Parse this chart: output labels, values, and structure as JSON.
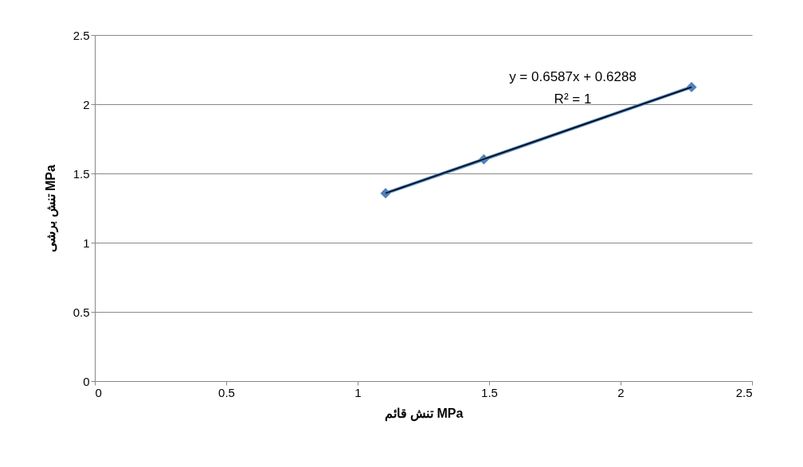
{
  "chart_data": {
    "type": "line",
    "xlabel": "تنش قائم MPa",
    "ylabel": "تنش برشی MPa",
    "xlim": [
      0,
      2.5
    ],
    "xticks": [
      0,
      0.5,
      1,
      1.5,
      2,
      2.5
    ],
    "ylim": [
      0,
      2.5
    ],
    "yticks": [
      0,
      0.5,
      1,
      1.5,
      2,
      2.5
    ],
    "grid": "y",
    "marker": "diamond",
    "line_style": "solid",
    "series": [
      {
        "color": "#4f81bd",
        "x": [
          1.106,
          1.48,
          2.27
        ],
        "values": [
          1.357,
          1.602,
          2.124
        ]
      },
      {
        "type": "line",
        "color": "#000000",
        "marker": "none",
        "x": [
          1.106,
          2.27
        ],
        "values": [
          1.357,
          2.124
        ]
      }
    ],
    "annotations": [
      "y = 0.6587x + 0.6288",
      "R² = 1"
    ]
  }
}
